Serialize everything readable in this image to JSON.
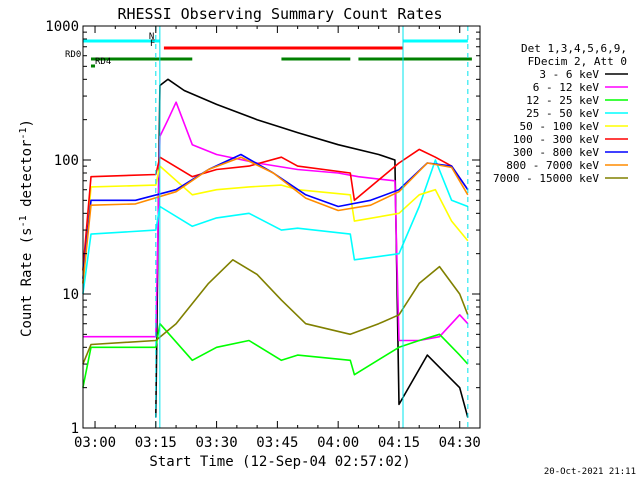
{
  "chart_data": {
    "type": "line",
    "title": "RHESSI Observing Summary Count Rates",
    "xlabel": "Start Time (12-Sep-04 02:57:02)",
    "ylabel": "Count Rate (s",
    "ylabel_sup": "-1",
    "ylabel_tail": " detector",
    "ylabel_close": ")",
    "y_scale": "log",
    "xlim": [
      "02:57:02",
      "04:35:00"
    ],
    "ylim": [
      1,
      1000
    ],
    "x_ticks": [
      "03:00",
      "03:15",
      "03:30",
      "03:45",
      "04:00",
      "04:15",
      "04:30"
    ],
    "y_ticks": [
      "1",
      "10",
      "100",
      "1000"
    ],
    "legend_header": [
      "Det 1,3,4,5,6,9,",
      "FDecim 2, Att 0"
    ],
    "legend_position": "right",
    "footer_date": "20-Oct-2021 21:11",
    "flags": [
      {
        "label": "N",
        "color": "#00ffff",
        "segments": [
          [
            "02:57",
            "03:16"
          ],
          [
            "04:16",
            "04:32"
          ]
        ]
      },
      {
        "label": "F",
        "color": "#ff0000",
        "segments": [
          [
            "03:17",
            "04:16"
          ]
        ]
      },
      {
        "label": "RD0",
        "color": "#008000",
        "segments": [
          [
            "02:59",
            "03:24"
          ],
          [
            "03:46",
            "04:03"
          ],
          [
            "04:05",
            "04:33"
          ]
        ]
      },
      {
        "label": "RD4",
        "color": "#008000",
        "segments": [
          [
            "02:59",
            "03:00"
          ]
        ]
      }
    ],
    "night_markers": [
      "03:15",
      "04:32"
    ],
    "day_markers": [
      "03:16",
      "04:16"
    ],
    "series": [
      {
        "name": "3 - 6 keV",
        "color": "#000000",
        "points": [
          [
            "03:15",
            "1.2"
          ],
          [
            "03:16",
            "360"
          ],
          [
            "03:18",
            "400"
          ],
          [
            "03:22",
            "330"
          ],
          [
            "03:30",
            "260"
          ],
          [
            "03:40",
            "200"
          ],
          [
            "03:50",
            "160"
          ],
          [
            "04:00",
            "130"
          ],
          [
            "04:10",
            "110"
          ],
          [
            "04:14",
            "100"
          ],
          [
            "04:15",
            "1.5"
          ],
          [
            "04:22",
            "3.5"
          ],
          [
            "04:30",
            "2"
          ],
          [
            "04:32",
            "1.2"
          ]
        ]
      },
      {
        "name": "6 - 12 keV",
        "color": "#ff00ff",
        "points": [
          [
            "02:57",
            "4.8"
          ],
          [
            "03:15",
            "4.8"
          ],
          [
            "03:16",
            "150"
          ],
          [
            "03:18",
            "200"
          ],
          [
            "03:20",
            "270"
          ],
          [
            "03:24",
            "130"
          ],
          [
            "03:30",
            "110"
          ],
          [
            "03:40",
            "95"
          ],
          [
            "03:50",
            "85"
          ],
          [
            "04:00",
            "80"
          ],
          [
            "04:05",
            "75"
          ],
          [
            "04:10",
            "72"
          ],
          [
            "04:14",
            "70"
          ],
          [
            "04:15",
            "4.5"
          ],
          [
            "04:20",
            "4.5"
          ],
          [
            "04:25",
            "4.8"
          ],
          [
            "04:30",
            "7"
          ],
          [
            "04:32",
            "6"
          ]
        ]
      },
      {
        "name": "12 - 25 keV",
        "color": "#00ff00",
        "points": [
          [
            "02:57",
            "2"
          ],
          [
            "02:59",
            "4"
          ],
          [
            "03:15",
            "4"
          ],
          [
            "03:16",
            "6"
          ],
          [
            "03:24",
            "3.2"
          ],
          [
            "03:30",
            "4"
          ],
          [
            "03:38",
            "4.5"
          ],
          [
            "03:46",
            "3.2"
          ],
          [
            "03:50",
            "3.5"
          ],
          [
            "04:03",
            "3.2"
          ],
          [
            "04:04",
            "2.5"
          ],
          [
            "04:15",
            "4"
          ],
          [
            "04:20",
            "4.5"
          ],
          [
            "04:25",
            "5"
          ],
          [
            "04:30",
            "3.5"
          ],
          [
            "04:32",
            "3"
          ]
        ]
      },
      {
        "name": "25 - 50 keV",
        "color": "#00ffff",
        "points": [
          [
            "02:57",
            "10"
          ],
          [
            "02:59",
            "28"
          ],
          [
            "03:15",
            "30"
          ],
          [
            "03:16",
            "45"
          ],
          [
            "03:24",
            "32"
          ],
          [
            "03:30",
            "37"
          ],
          [
            "03:38",
            "40"
          ],
          [
            "03:46",
            "30"
          ],
          [
            "03:50",
            "31"
          ],
          [
            "04:03",
            "28"
          ],
          [
            "04:04",
            "18"
          ],
          [
            "04:15",
            "20"
          ],
          [
            "04:20",
            "45"
          ],
          [
            "04:24",
            "100"
          ],
          [
            "04:28",
            "50"
          ],
          [
            "04:32",
            "45"
          ]
        ]
      },
      {
        "name": "50 - 100 keV",
        "color": "#ffff00",
        "points": [
          [
            "02:57",
            "12"
          ],
          [
            "02:59",
            "63"
          ],
          [
            "03:15",
            "65"
          ],
          [
            "03:16",
            "90"
          ],
          [
            "03:24",
            "55"
          ],
          [
            "03:30",
            "60"
          ],
          [
            "03:38",
            "63"
          ],
          [
            "03:46",
            "65"
          ],
          [
            "03:50",
            "60"
          ],
          [
            "04:03",
            "55"
          ],
          [
            "04:04",
            "35"
          ],
          [
            "04:15",
            "40"
          ],
          [
            "04:20",
            "55"
          ],
          [
            "04:24",
            "60"
          ],
          [
            "04:28",
            "35"
          ],
          [
            "04:32",
            "25"
          ]
        ]
      },
      {
        "name": "100 - 300 keV",
        "color": "#ff0000",
        "points": [
          [
            "02:57",
            "15"
          ],
          [
            "02:59",
            "75"
          ],
          [
            "03:15",
            "78"
          ],
          [
            "03:16",
            "105"
          ],
          [
            "03:24",
            "75"
          ],
          [
            "03:30",
            "85"
          ],
          [
            "03:38",
            "90"
          ],
          [
            "03:46",
            "105"
          ],
          [
            "03:50",
            "90"
          ],
          [
            "04:03",
            "80"
          ],
          [
            "04:04",
            "50"
          ],
          [
            "04:15",
            "95"
          ],
          [
            "04:20",
            "120"
          ],
          [
            "04:24",
            "105"
          ],
          [
            "04:28",
            "90"
          ],
          [
            "04:32",
            "60"
          ]
        ]
      },
      {
        "name": "300 - 800 keV",
        "color": "#0000ff",
        "points": [
          [
            "02:57",
            "13"
          ],
          [
            "02:59",
            "50"
          ],
          [
            "03:10",
            "50"
          ],
          [
            "03:20",
            "60"
          ],
          [
            "03:28",
            "85"
          ],
          [
            "03:36",
            "110"
          ],
          [
            "03:44",
            "80"
          ],
          [
            "03:52",
            "55"
          ],
          [
            "04:00",
            "45"
          ],
          [
            "04:08",
            "50"
          ],
          [
            "04:15",
            "60"
          ],
          [
            "04:22",
            "95"
          ],
          [
            "04:28",
            "90"
          ],
          [
            "04:32",
            "60"
          ]
        ]
      },
      {
        "name": "800 - 7000 keV",
        "color": "#ff8c00",
        "points": [
          [
            "02:57",
            "12"
          ],
          [
            "02:59",
            "46"
          ],
          [
            "03:10",
            "47"
          ],
          [
            "03:20",
            "58"
          ],
          [
            "03:28",
            "85"
          ],
          [
            "03:36",
            "105"
          ],
          [
            "03:44",
            "80"
          ],
          [
            "03:52",
            "52"
          ],
          [
            "04:00",
            "42"
          ],
          [
            "04:08",
            "46"
          ],
          [
            "04:15",
            "58"
          ],
          [
            "04:22",
            "95"
          ],
          [
            "04:28",
            "88"
          ],
          [
            "04:32",
            "55"
          ]
        ]
      },
      {
        "name": "7000 - 15000 keV",
        "color": "#808000",
        "points": [
          [
            "02:57",
            "3"
          ],
          [
            "02:59",
            "4.2"
          ],
          [
            "03:15",
            "4.5"
          ],
          [
            "03:20",
            "6"
          ],
          [
            "03:28",
            "12"
          ],
          [
            "03:34",
            "18"
          ],
          [
            "03:40",
            "14"
          ],
          [
            "03:46",
            "9"
          ],
          [
            "03:52",
            "6"
          ],
          [
            "04:03",
            "5"
          ],
          [
            "04:10",
            "6"
          ],
          [
            "04:15",
            "7"
          ],
          [
            "04:20",
            "12"
          ],
          [
            "04:25",
            "16"
          ],
          [
            "04:30",
            "10"
          ],
          [
            "04:32",
            "7"
          ]
        ]
      }
    ]
  }
}
